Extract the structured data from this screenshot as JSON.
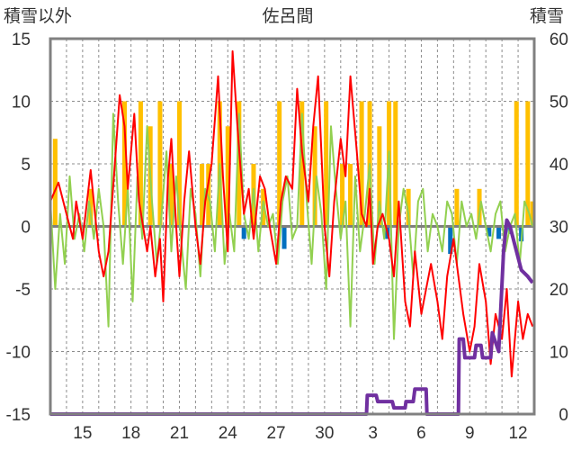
{
  "chart_data": {
    "type": "bar+line",
    "title": "佐呂間",
    "left_axis_label": "積雪以外",
    "right_axis_label": "積雪",
    "y_left": {
      "min": -15,
      "max": 15,
      "ticks": [
        "15",
        "10",
        "5",
        "0",
        "-5",
        "-10",
        "-15"
      ]
    },
    "y_right": {
      "min": 0,
      "max": 60,
      "ticks": [
        "60",
        "50",
        "40",
        "30",
        "20",
        "10",
        "0"
      ]
    },
    "x_ticks": [
      {
        "label": "15",
        "day": 2
      },
      {
        "label": "18",
        "day": 5
      },
      {
        "label": "21",
        "day": 8
      },
      {
        "label": "24",
        "day": 11
      },
      {
        "label": "27",
        "day": 14
      },
      {
        "label": "30",
        "day": 17
      },
      {
        "label": "3",
        "day": 20
      },
      {
        "label": "6",
        "day": 23
      },
      {
        "label": "9",
        "day": 26
      },
      {
        "label": "12",
        "day": 29
      }
    ],
    "x_range_days": [
      0,
      30
    ],
    "grid": true,
    "colors": {
      "temperature": "#ff0000",
      "temp_change": "#92d050",
      "precip": "#ffc000",
      "precip_neg": "#0070c0",
      "snow_depth": "#7030a0",
      "zero_line": "#7f7f7f"
    },
    "series": [
      {
        "key": "precip",
        "kind": "bar",
        "axis": "left",
        "x": [
          0.3,
          2.5,
          4.6,
          5.6,
          6.2,
          6.8,
          7.5,
          8.0,
          9.4,
          9.8,
          10.5,
          11.0,
          11.7,
          12.6,
          13.2,
          14.2,
          15.6,
          16.4,
          17.1,
          18.1,
          18.6,
          19.3,
          19.8,
          20.4,
          21.0,
          21.4,
          22.2,
          25.2,
          26.6,
          28.9,
          29.6,
          29.9
        ],
        "values": [
          7,
          3,
          10,
          10,
          8,
          10,
          5,
          10,
          5,
          5,
          10,
          8,
          10,
          5,
          3,
          10,
          10,
          8,
          10,
          5,
          5,
          10,
          10,
          8,
          10,
          10,
          3,
          3,
          3,
          10,
          10,
          2
        ]
      },
      {
        "key": "precip_neg",
        "kind": "bar",
        "axis": "left",
        "x": [
          12.0,
          14.5,
          20.9,
          24.8,
          27.2,
          27.8,
          28.5,
          29.2
        ],
        "values": [
          -1.0,
          -1.8,
          -1.0,
          -2.2,
          -0.8,
          -1.0,
          -0.6,
          -1.2
        ]
      },
      {
        "key": "temperature",
        "kind": "line",
        "axis": "left",
        "x": [
          0.0,
          0.5,
          1.0,
          1.4,
          1.6,
          2.0,
          2.5,
          3.0,
          3.3,
          3.6,
          4.0,
          4.3,
          4.6,
          4.8,
          5.2,
          5.5,
          6.0,
          6.2,
          6.5,
          6.8,
          7.0,
          7.3,
          7.5,
          7.8,
          8.0,
          8.3,
          8.6,
          9.0,
          9.3,
          9.6,
          10.0,
          10.4,
          10.7,
          11.0,
          11.3,
          11.6,
          12.0,
          12.3,
          12.6,
          13.0,
          13.3,
          13.6,
          14.0,
          14.3,
          14.6,
          15.0,
          15.3,
          15.6,
          16.0,
          16.3,
          16.6,
          17.0,
          17.3,
          17.6,
          18.0,
          18.3,
          18.6,
          19.0,
          19.3,
          19.6,
          19.8,
          20.0,
          20.3,
          20.6,
          21.0,
          21.3,
          21.6,
          22.0,
          22.3,
          22.6,
          23.0,
          23.3,
          23.6,
          24.0,
          24.3,
          24.6,
          25.0,
          25.3,
          25.6,
          26.0,
          26.3,
          26.6,
          27.0,
          27.3,
          27.6,
          28.0,
          28.3,
          28.6,
          29.0,
          29.3,
          29.6,
          29.9
        ],
        "values": [
          2,
          3.5,
          1,
          -1,
          2,
          -1,
          4.5,
          -2,
          -4,
          -2,
          5,
          10.5,
          8,
          3,
          9,
          2,
          -2,
          0,
          -4,
          -1,
          -6,
          4,
          7,
          0,
          -4,
          2,
          6,
          0,
          -3,
          2,
          5,
          12,
          4,
          -2,
          14,
          8,
          1,
          3,
          -1,
          4,
          3,
          0,
          -3,
          2,
          4,
          3,
          11,
          6,
          2,
          8,
          12,
          0,
          -4,
          2,
          7,
          4,
          12,
          6,
          1,
          0,
          3,
          -3,
          0,
          1,
          -1,
          -4,
          2,
          -6,
          -8,
          -2,
          -7,
          -5,
          -3,
          -6,
          -9,
          -4,
          -1,
          -4,
          -7,
          -10,
          -8,
          -3,
          -6,
          -11,
          -7,
          -9,
          -5,
          -12,
          -6,
          -9,
          -7,
          -8
        ]
      },
      {
        "key": "temp_change",
        "kind": "line",
        "axis": "left",
        "x": [
          0.0,
          0.3,
          0.6,
          0.9,
          1.2,
          1.5,
          1.8,
          2.1,
          2.4,
          2.7,
          3.0,
          3.3,
          3.6,
          3.9,
          4.2,
          4.5,
          4.8,
          5.1,
          5.4,
          5.7,
          6.0,
          6.3,
          6.6,
          6.9,
          7.2,
          7.5,
          7.8,
          8.1,
          8.4,
          8.7,
          9.0,
          9.3,
          9.6,
          9.9,
          10.2,
          10.5,
          10.8,
          11.1,
          11.4,
          11.7,
          12.0,
          12.3,
          12.6,
          12.9,
          13.2,
          13.5,
          13.8,
          14.1,
          14.4,
          14.7,
          15.0,
          15.3,
          15.6,
          15.9,
          16.2,
          16.5,
          16.8,
          17.1,
          17.4,
          17.7,
          18.0,
          18.3,
          18.6,
          18.9,
          19.2,
          19.5,
          19.8,
          20.1,
          20.4,
          20.7,
          21.0,
          21.3,
          21.6,
          21.9,
          22.2,
          22.5,
          22.8,
          23.1,
          23.4,
          23.7,
          24.0,
          24.3,
          24.6,
          24.9,
          25.2,
          25.5,
          25.8,
          26.1,
          26.4,
          26.7,
          27.0,
          27.3,
          27.6,
          27.9,
          28.2,
          28.5,
          28.8,
          29.1,
          29.4,
          29.7,
          29.9
        ],
        "values": [
          2,
          -5,
          1,
          -3,
          4,
          -1,
          1,
          -2,
          2,
          -1,
          3,
          0,
          -8,
          9,
          2,
          -3,
          3,
          -6,
          4,
          -1,
          8,
          2,
          -3,
          1,
          6,
          -2,
          4,
          -1,
          -5,
          3,
          1,
          -4,
          3,
          2,
          -2,
          5,
          -3,
          1,
          -2,
          9,
          1,
          -1,
          3,
          -2,
          2,
          0,
          1,
          -3,
          2,
          4,
          -1,
          0,
          9,
          2,
          -3,
          4,
          1,
          -5,
          8,
          3,
          -1,
          2,
          -8,
          4,
          -2,
          1,
          5,
          -3,
          2,
          -1,
          6,
          -9,
          0,
          3,
          1,
          -4,
          2,
          3,
          -2,
          1,
          0,
          -2,
          2,
          1,
          -3,
          2,
          0,
          1,
          -1,
          2,
          0,
          -2,
          1,
          2,
          -2,
          0,
          1,
          -3,
          2,
          1,
          0
        ]
      },
      {
        "key": "snow_depth",
        "kind": "line",
        "axis": "right",
        "x": [
          0.0,
          19.6,
          19.65,
          20.2,
          20.3,
          21.2,
          21.3,
          22.0,
          22.05,
          22.5,
          22.6,
          23.3,
          23.35,
          24.0,
          24.2,
          24.4,
          24.45,
          25.3,
          25.35,
          25.6,
          25.7,
          26.3,
          26.4,
          26.7,
          26.8,
          27.3,
          27.4,
          27.8,
          28.1,
          28.3,
          28.5,
          28.8,
          29.2,
          29.6,
          29.9
        ],
        "values": [
          0,
          0,
          3,
          3,
          2,
          2,
          1,
          1,
          2,
          2,
          4,
          4,
          0,
          0,
          0,
          0,
          0,
          0,
          12,
          12,
          9,
          9,
          11,
          11,
          9,
          9,
          13,
          10,
          26,
          31,
          30,
          27,
          23,
          22,
          21
        ]
      }
    ]
  }
}
